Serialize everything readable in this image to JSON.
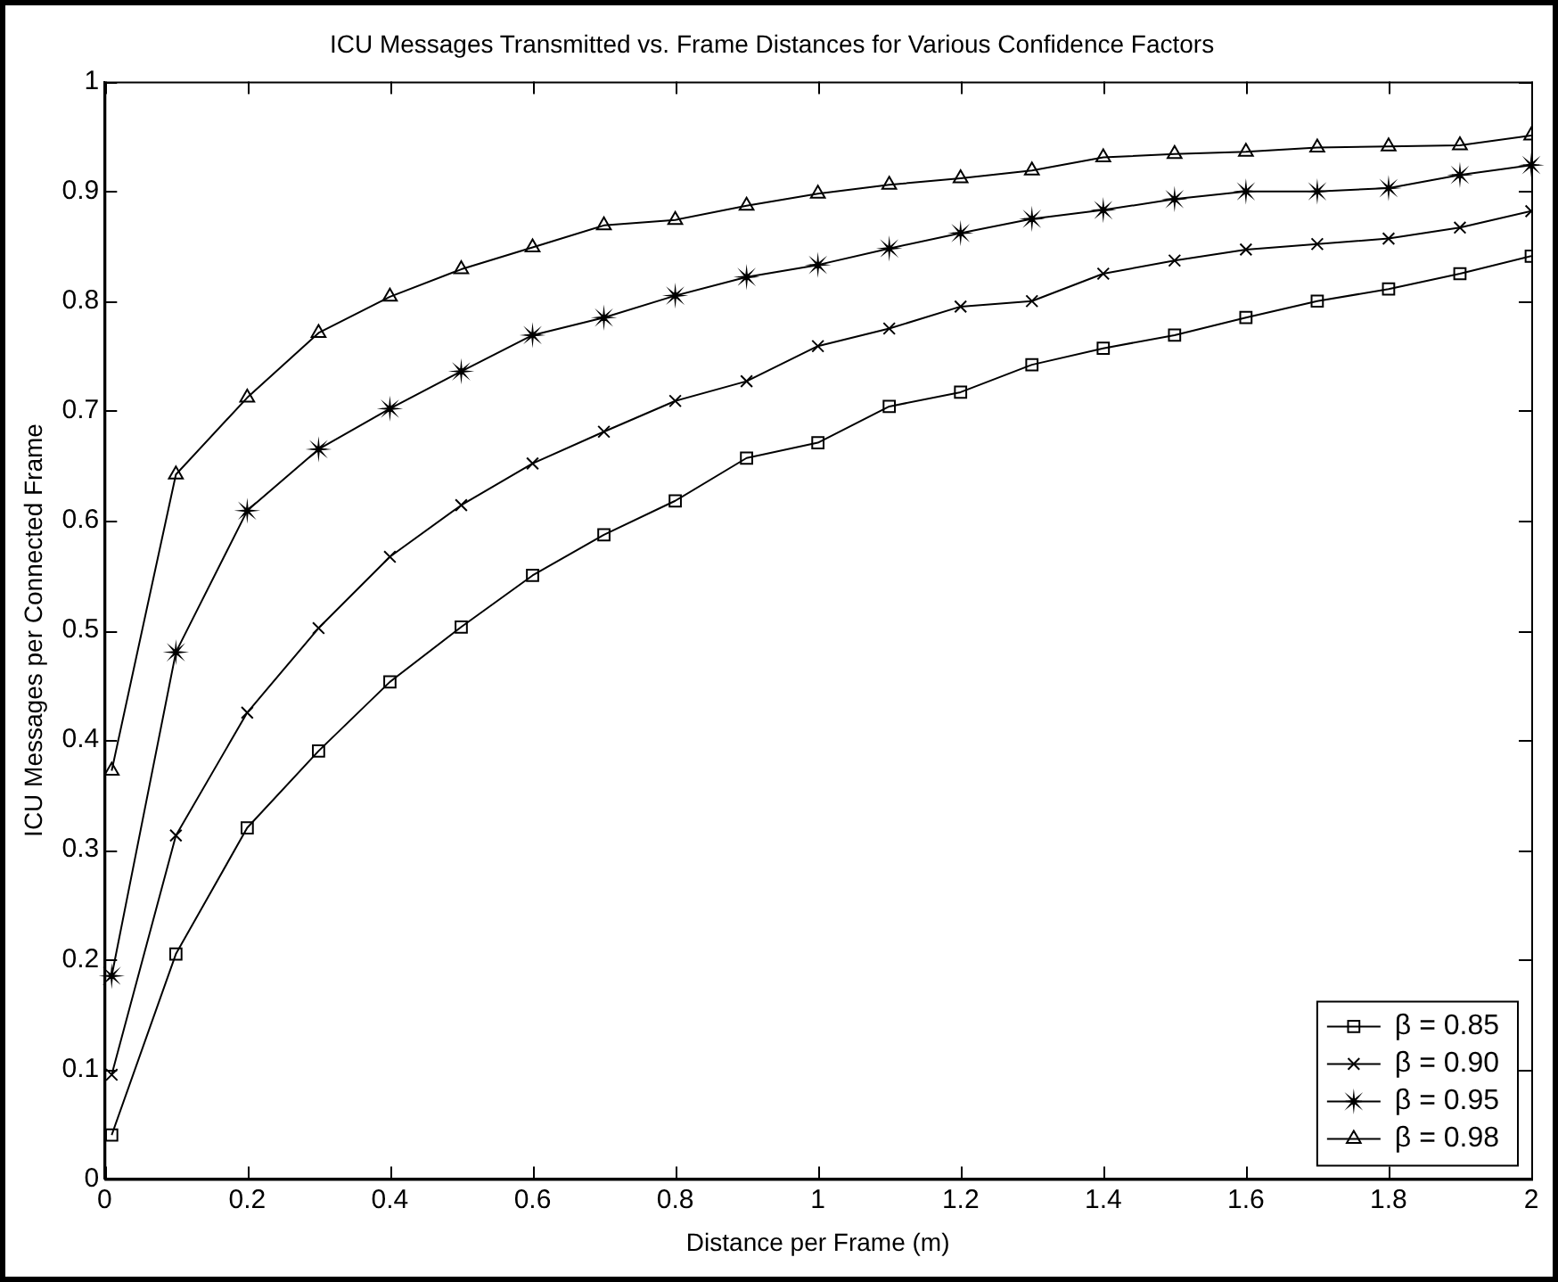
{
  "chart_data": {
    "type": "line",
    "title": "ICU Messages Transmitted vs. Frame Distances for Various Confidence Factors",
    "xlabel": "Distance per Frame (m)",
    "ylabel": "ICU Messages per Connected Frame",
    "x": [
      0.01,
      0.1,
      0.2,
      0.3,
      0.4,
      0.5,
      0.6,
      0.7,
      0.8,
      0.9,
      1.0,
      1.1,
      1.2,
      1.3,
      1.4,
      1.5,
      1.6,
      1.7,
      1.8,
      1.9,
      2.0
    ],
    "series": [
      {
        "name": "β = 0.85",
        "color": "#000000",
        "marker": "square",
        "values": [
          0.04,
          0.205,
          0.32,
          0.39,
          0.453,
          0.503,
          0.55,
          0.587,
          0.618,
          0.657,
          0.671,
          0.704,
          0.717,
          0.742,
          0.757,
          0.769,
          0.785,
          0.8,
          0.811,
          0.825,
          0.841
        ]
      },
      {
        "name": "β = 0.90",
        "color": "#000000",
        "marker": "cross",
        "values": [
          0.095,
          0.313,
          0.425,
          0.502,
          0.567,
          0.614,
          0.652,
          0.681,
          0.709,
          0.727,
          0.759,
          0.775,
          0.795,
          0.8,
          0.825,
          0.837,
          0.847,
          0.852,
          0.857,
          0.867,
          0.882
        ]
      },
      {
        "name": "β = 0.95",
        "color": "#000000",
        "marker": "star",
        "values": [
          0.185,
          0.48,
          0.609,
          0.665,
          0.702,
          0.736,
          0.769,
          0.785,
          0.805,
          0.822,
          0.833,
          0.848,
          0.862,
          0.875,
          0.883,
          0.893,
          0.9,
          0.9,
          0.903,
          0.915,
          0.924
        ]
      },
      {
        "name": "β = 0.98",
        "color": "#000000",
        "marker": "triangle",
        "values": [
          0.372,
          0.642,
          0.712,
          0.771,
          0.804,
          0.829,
          0.849,
          0.869,
          0.874,
          0.887,
          0.898,
          0.906,
          0.912,
          0.919,
          0.931,
          0.934,
          0.936,
          0.94,
          0.941,
          0.942,
          0.951
        ]
      }
    ],
    "xlim": [
      0,
      2
    ],
    "xticks": [
      0,
      0.2,
      0.4,
      0.6,
      0.8,
      1,
      1.2,
      1.4,
      1.6,
      1.8,
      2
    ],
    "ylim": [
      0,
      1
    ],
    "yticks": [
      0,
      0.1,
      0.2,
      0.3,
      0.4,
      0.5,
      0.6,
      0.7,
      0.8,
      0.9,
      1
    ],
    "grid": false,
    "legend": "bottom right",
    "line_style": "solid"
  }
}
